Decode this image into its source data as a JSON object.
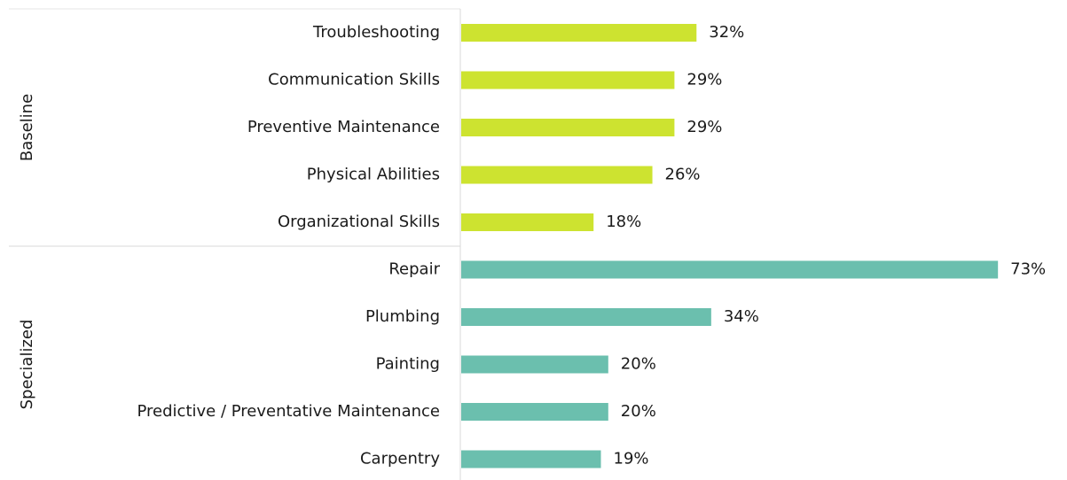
{
  "chart_data": {
    "type": "bar",
    "orientation": "horizontal",
    "groups": [
      {
        "name": "Baseline",
        "color": "#cde330",
        "categories": [
          "Troubleshooting",
          "Communication Skills",
          "Preventive Maintenance",
          "Physical Abilities",
          "Organizational Skills"
        ],
        "values": [
          32,
          29,
          29,
          26,
          18
        ],
        "value_labels": [
          "32%",
          "29%",
          "29%",
          "26%",
          "18%"
        ]
      },
      {
        "name": "Specialized",
        "color": "#6bbfae",
        "categories": [
          "Repair",
          "Plumbing",
          "Painting",
          "Predictive / Preventative Maintenance",
          "Carpentry"
        ],
        "values": [
          73,
          34,
          20,
          20,
          19
        ],
        "value_labels": [
          "73%",
          "34%",
          "20%",
          "20%",
          "19%"
        ]
      }
    ]
  }
}
